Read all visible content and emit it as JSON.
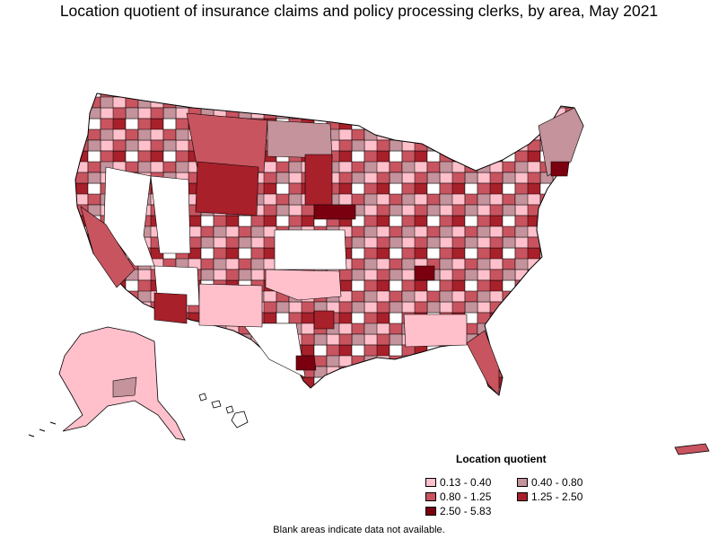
{
  "title": "Location quotient of insurance claims and policy processing clerks, by area, May 2021",
  "legend": {
    "title": "Location quotient",
    "items": [
      {
        "label": "0.13 - 0.40",
        "color": "#ffc0cb"
      },
      {
        "label": "0.40 - 0.80",
        "color": "#c4939c"
      },
      {
        "label": "0.80 - 1.25",
        "color": "#c8545f"
      },
      {
        "label": "1.25 - 2.50",
        "color": "#a8202a"
      },
      {
        "label": "2.50 - 5.83",
        "color": "#7a0010"
      }
    ]
  },
  "footnote": "Blank areas indicate data not available.",
  "colors": {
    "no_data": "#ffffff",
    "border": "#000000"
  }
}
